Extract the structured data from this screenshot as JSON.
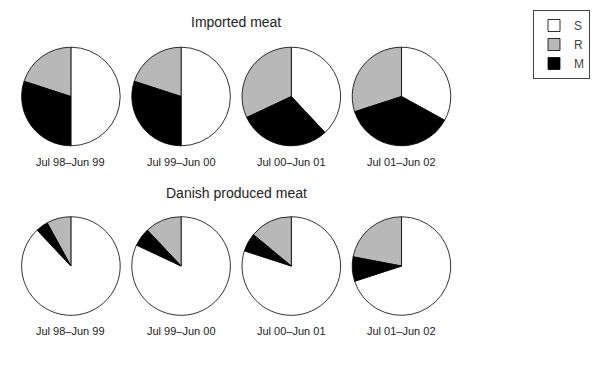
{
  "chart_data": [
    {
      "type": "pie",
      "title": "Imported meat",
      "categories": [
        "S",
        "R",
        "M"
      ],
      "colors": [
        "#ffffff",
        "#b8b8b8",
        "#000000"
      ],
      "legend": "upper right",
      "series": [
        {
          "name": "Jul 98–Jun 99",
          "values": [
            50,
            20,
            30
          ]
        },
        {
          "name": "Jul 99–Jun 00",
          "values": [
            50,
            20,
            30
          ]
        },
        {
          "name": "Jul 00–Jun 01",
          "values": [
            38,
            32,
            30
          ]
        },
        {
          "name": "Jul 01–Jun 02",
          "values": [
            33,
            30,
            37
          ]
        }
      ]
    },
    {
      "type": "pie",
      "title": "Danish produced meat",
      "categories": [
        "S",
        "R",
        "M"
      ],
      "colors": [
        "#ffffff",
        "#b8b8b8",
        "#000000"
      ],
      "series": [
        {
          "name": "Jul 98–Jun 99",
          "values": [
            88,
            8,
            4
          ]
        },
        {
          "name": "Jul 99–Jun 00",
          "values": [
            82,
            12,
            6
          ]
        },
        {
          "name": "Jul 00–Jun 01",
          "values": [
            80,
            14,
            6
          ]
        },
        {
          "name": "Jul 01–Jun 02",
          "values": [
            70,
            22,
            8
          ]
        }
      ]
    }
  ]
}
